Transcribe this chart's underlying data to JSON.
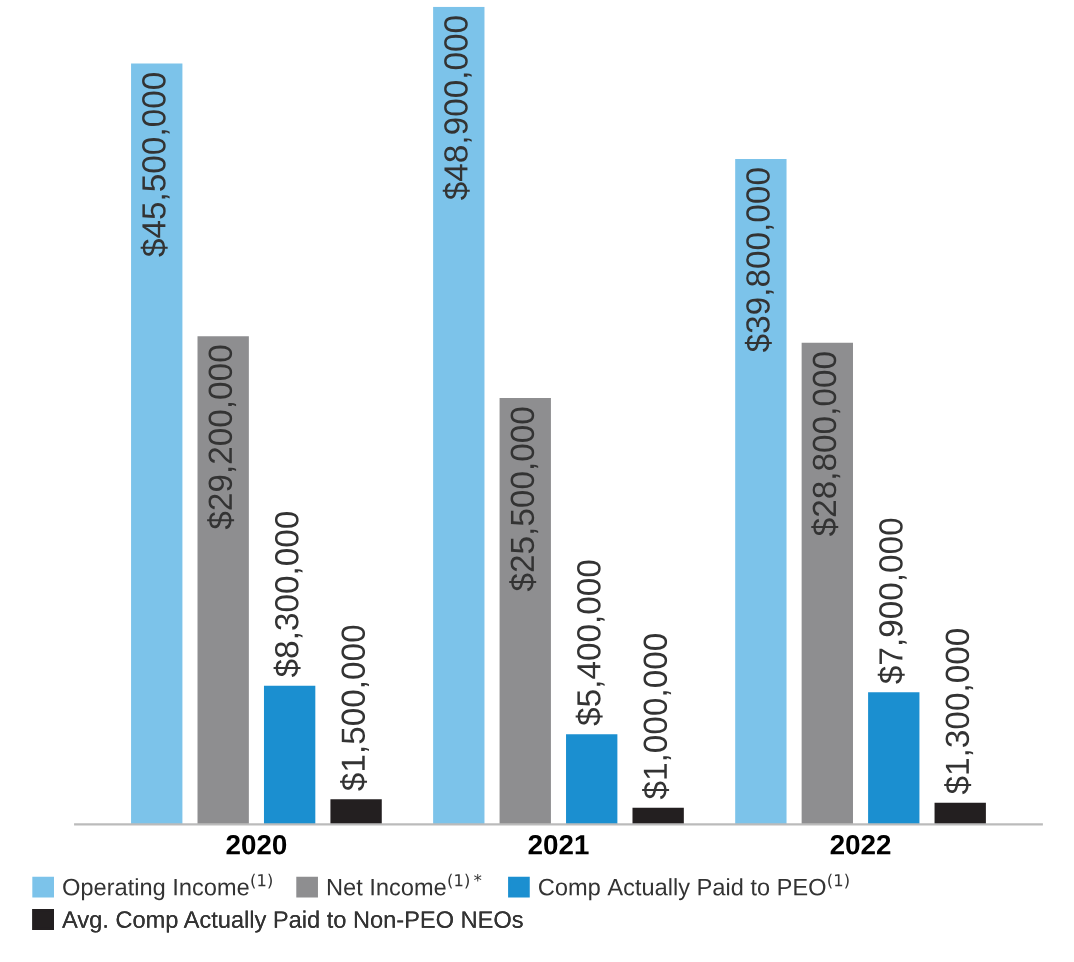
{
  "chart_data": {
    "type": "bar",
    "categories": [
      "2020",
      "2021",
      "2022"
    ],
    "series": [
      {
        "name": "Operating Income$^{(1)}$",
        "color": "#7cc3ea",
        "values": [
          45500000,
          48900000,
          39800000
        ],
        "value_labels": [
          "$45,500,000",
          "$48,900,000",
          "$39,800,000"
        ]
      },
      {
        "name": "Net Income$^{(1)*}$",
        "color": "#8e8e90",
        "values": [
          29200000,
          25500000,
          28800000
        ],
        "value_labels": [
          "$29,200,000",
          "$25,500,000",
          "$28,800,000"
        ]
      },
      {
        "name": "Comp Actually Paid to PEO$^{(1)}$",
        "color": "#1b8fd0",
        "values": [
          8300000,
          5400000,
          7900000
        ],
        "value_labels": [
          "$8,300,000",
          "$5,400,000",
          "$7,900,000"
        ]
      },
      {
        "name": "Avg. Comp Actually Paid to Non-PEO NEOs",
        "color": "#231f20",
        "values": [
          1500000,
          1000000,
          1300000
        ],
        "value_labels": [
          "$1,500,000",
          "$1,000,000",
          "$1,300,000"
        ]
      }
    ],
    "legend": "bottom",
    "grid": false
  }
}
